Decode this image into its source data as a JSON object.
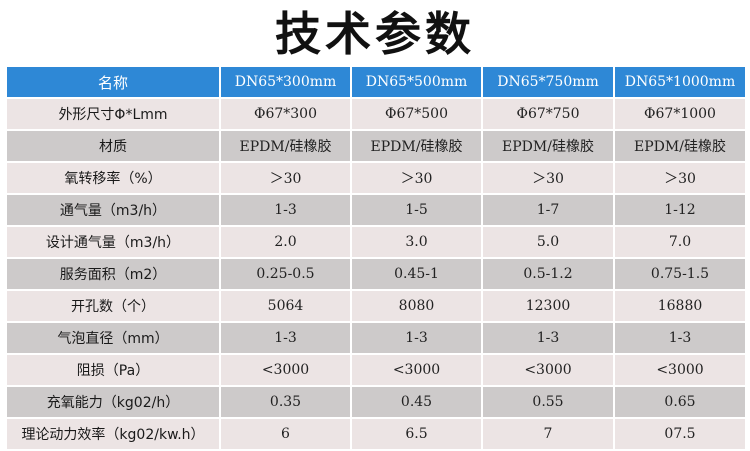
{
  "title": "技术参数",
  "table": {
    "header": [
      "名称",
      "DN65*300mm",
      "DN65*500mm",
      "DN65*750mm",
      "DN65*1000mm"
    ],
    "rows": [
      [
        "外形尺寸Φ*Lmm",
        "Φ67*300",
        "Φ67*500",
        "Φ67*750",
        "Φ67*1000"
      ],
      [
        "材质",
        "EPDM/硅橡胶",
        "EPDM/硅橡胶",
        "EPDM/硅橡胶",
        "EPDM/硅橡胶"
      ],
      [
        "氧转移率（%）",
        "＞30",
        "＞30",
        "＞30",
        "＞30"
      ],
      [
        "通气量（m3/h）",
        "1-3",
        "1-5",
        "1-7",
        "1-12"
      ],
      [
        "设计通气量（m3/h）",
        "2.0",
        "3.0",
        "5.0",
        "7.0"
      ],
      [
        "服务面积（m2）",
        "0.25-0.5",
        "0.45-1",
        "0.5-1.2",
        "0.75-1.5"
      ],
      [
        "开孔数（个）",
        "5064",
        "8080",
        "12300",
        "16880"
      ],
      [
        "气泡直径（mm）",
        "1-3",
        "1-3",
        "1-3",
        "1-3"
      ],
      [
        "阻损（Pa）",
        "<3000",
        "<3000",
        "<3000",
        "<3000"
      ],
      [
        "充氧能力（kg02/h）",
        "0.35",
        "0.45",
        "0.55",
        "0.65"
      ],
      [
        "理论动力效率（kg02/kw.h）",
        "6",
        "6.5",
        "7",
        "07.5"
      ]
    ]
  }
}
